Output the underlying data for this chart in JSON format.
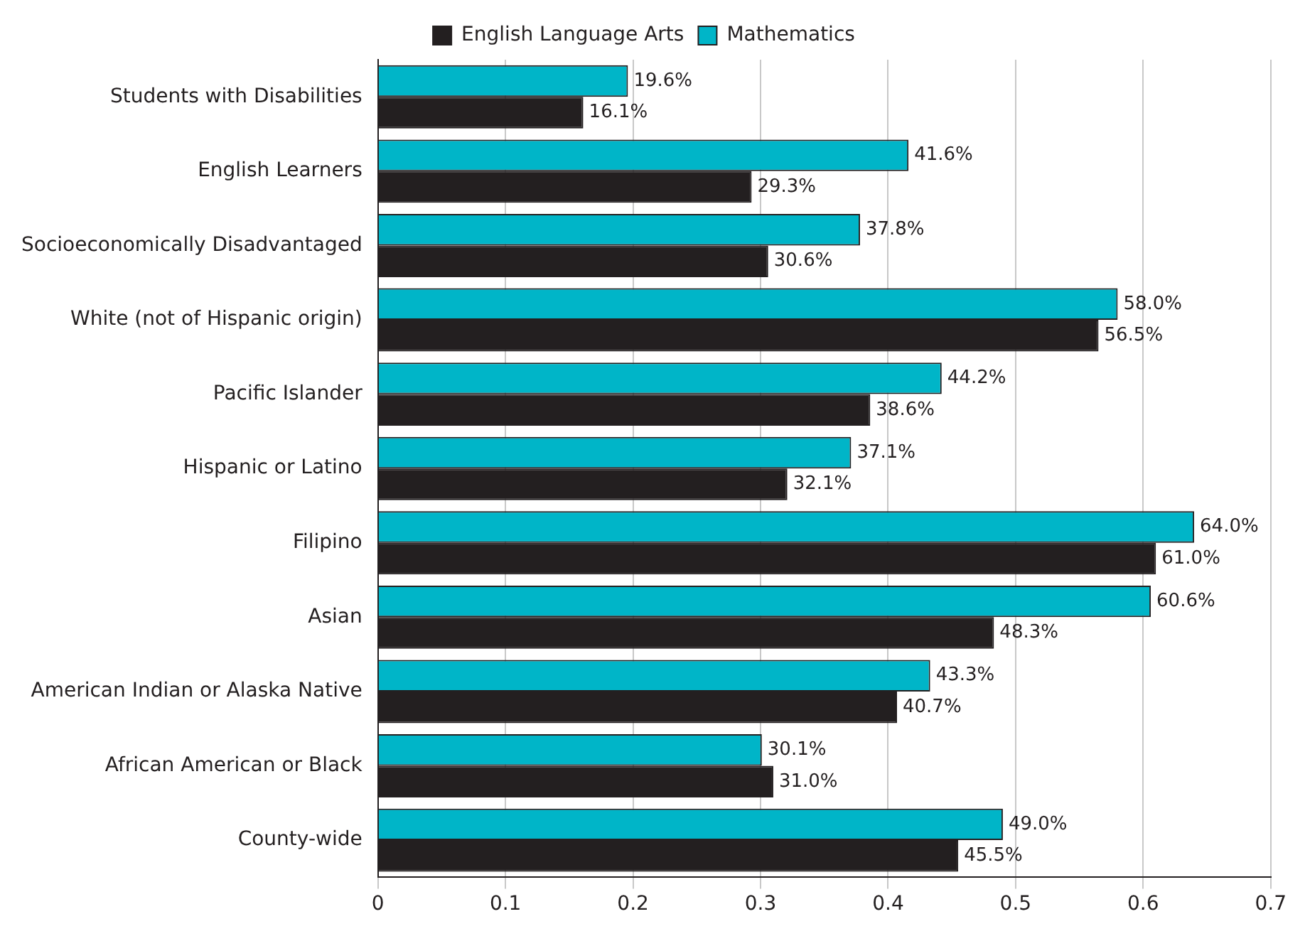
{
  "chart_data": {
    "type": "bar",
    "orientation": "horizontal",
    "categories": [
      "Students with Disabilities",
      "English Learners",
      "Socioeconomically Disadvantaged",
      "White (not of Hispanic origin)",
      "Pacific Islander",
      "Hispanic or Latino",
      "Filipino",
      "Asian",
      "American Indian or Alaska Native",
      "African American or Black",
      "County-wide"
    ],
    "series": [
      {
        "name": "Mathematics",
        "color": "#00b5c8",
        "values": [
          0.196,
          0.416,
          0.378,
          0.58,
          0.442,
          0.371,
          0.64,
          0.606,
          0.433,
          0.301,
          0.49
        ],
        "value_labels": [
          "19.6%",
          "41.6%",
          "37.8%",
          "58.0%",
          "44.2%",
          "37.1%",
          "64.0%",
          "60.6%",
          "43.3%",
          "30.1%",
          "49.0%"
        ]
      },
      {
        "name": "English Language Arts",
        "color": "#231f20",
        "values": [
          0.161,
          0.293,
          0.306,
          0.565,
          0.386,
          0.321,
          0.61,
          0.483,
          0.407,
          0.31,
          0.455
        ],
        "value_labels": [
          "16.1%",
          "29.3%",
          "30.6%",
          "56.5%",
          "38.6%",
          "32.1%",
          "61.0%",
          "48.3%",
          "40.7%",
          "31.0%",
          "45.5%"
        ]
      }
    ],
    "xlim": [
      0,
      0.7
    ],
    "xticks": [
      0,
      0.1,
      0.2,
      0.3,
      0.4,
      0.5,
      0.6,
      0.7
    ],
    "grid": "x",
    "legend": "top"
  }
}
